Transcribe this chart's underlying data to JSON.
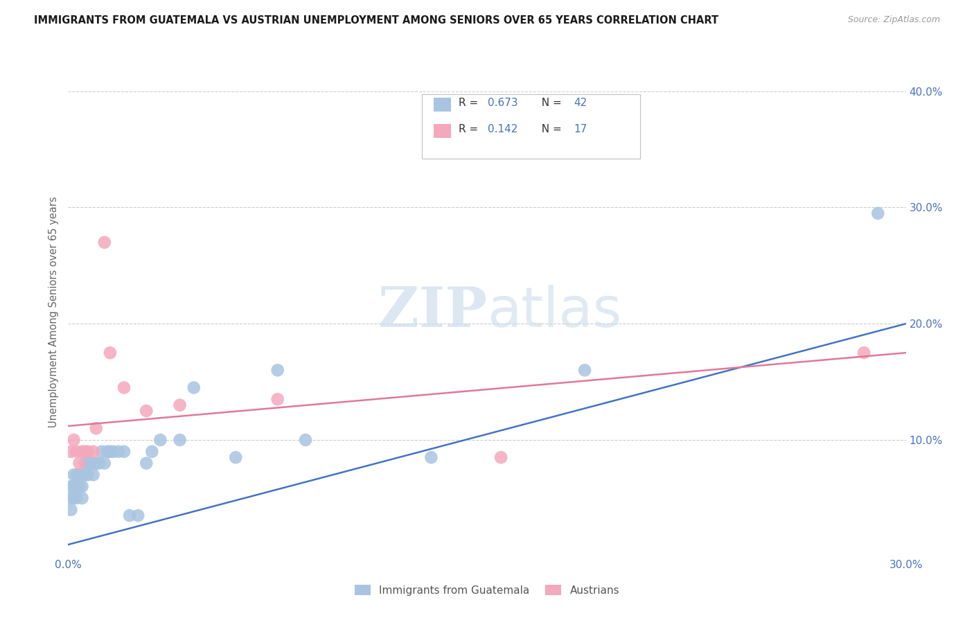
{
  "title": "IMMIGRANTS FROM GUATEMALA VS AUSTRIAN UNEMPLOYMENT AMONG SENIORS OVER 65 YEARS CORRELATION CHART",
  "source": "Source: ZipAtlas.com",
  "ylabel": "Unemployment Among Seniors over 65 years",
  "legend_label1": "Immigrants from Guatemala",
  "legend_label2": "Austrians",
  "R1": 0.673,
  "N1": 42,
  "R2": 0.142,
  "N2": 17,
  "color1": "#a8c4e0",
  "color2": "#f4a8bc",
  "line_color1": "#4472c4",
  "line_color2": "#e07898",
  "text_color_val": "#4472c4",
  "xlim": [
    0.0,
    0.3
  ],
  "ylim": [
    0.0,
    0.42
  ],
  "xticks": [
    0.0,
    0.05,
    0.1,
    0.15,
    0.2,
    0.25,
    0.3
  ],
  "yticks": [
    0.0,
    0.1,
    0.2,
    0.3,
    0.4
  ],
  "xtick_labels": [
    "0.0%",
    "",
    "",
    "",
    "",
    "",
    "30.0%"
  ],
  "ytick_labels": [
    "",
    "10.0%",
    "20.0%",
    "30.0%",
    "40.0%"
  ],
  "guatemala_x": [
    0.001,
    0.001,
    0.001,
    0.002,
    0.002,
    0.002,
    0.003,
    0.003,
    0.003,
    0.004,
    0.004,
    0.005,
    0.005,
    0.006,
    0.006,
    0.007,
    0.007,
    0.008,
    0.009,
    0.009,
    0.01,
    0.011,
    0.012,
    0.013,
    0.014,
    0.015,
    0.016,
    0.018,
    0.02,
    0.022,
    0.025,
    0.028,
    0.03,
    0.033,
    0.04,
    0.045,
    0.06,
    0.075,
    0.085,
    0.13,
    0.185,
    0.29
  ],
  "guatemala_y": [
    0.05,
    0.06,
    0.04,
    0.05,
    0.07,
    0.06,
    0.05,
    0.06,
    0.07,
    0.06,
    0.07,
    0.05,
    0.06,
    0.07,
    0.08,
    0.07,
    0.08,
    0.08,
    0.07,
    0.08,
    0.08,
    0.08,
    0.09,
    0.08,
    0.09,
    0.09,
    0.09,
    0.09,
    0.09,
    0.035,
    0.035,
    0.08,
    0.09,
    0.1,
    0.1,
    0.145,
    0.085,
    0.16,
    0.1,
    0.085,
    0.16,
    0.295
  ],
  "austrians_x": [
    0.001,
    0.002,
    0.003,
    0.004,
    0.005,
    0.006,
    0.007,
    0.009,
    0.01,
    0.013,
    0.015,
    0.02,
    0.028,
    0.04,
    0.075,
    0.155,
    0.285
  ],
  "austrians_y": [
    0.09,
    0.1,
    0.09,
    0.08,
    0.09,
    0.09,
    0.09,
    0.09,
    0.11,
    0.27,
    0.175,
    0.145,
    0.125,
    0.13,
    0.135,
    0.085,
    0.175
  ],
  "watermark_zip": "ZIP",
  "watermark_atlas": "atlas",
  "background_color": "#ffffff",
  "grid_color": "#cccccc"
}
